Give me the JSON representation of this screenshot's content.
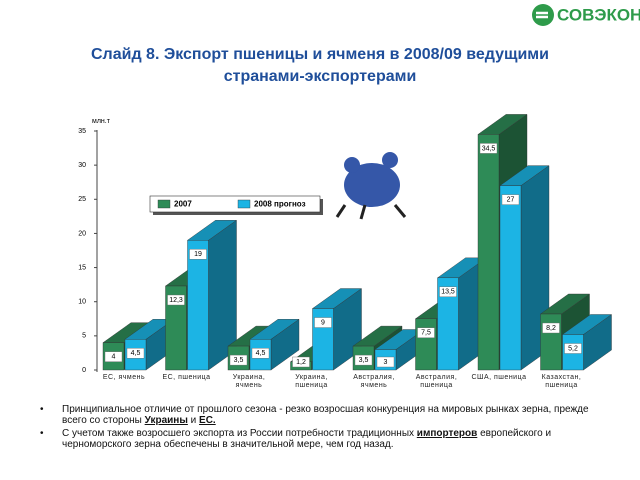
{
  "logo": "СОВЭКОН",
  "chart_data": {
    "type": "bar3d",
    "title": "Слайд 8. Экспорт пшеницы и ячменя в 2008/09 ведущими странами-экспортерами",
    "y_label": "млн.т",
    "categories": [
      "ЕС, ячмень",
      "ЕС, пшеница",
      "Украина, ячмень",
      "Украина, пшеница",
      "Австралия, ячмень",
      "Австралия, пшеница",
      "США, пшеница",
      "Казахстан, пшеница"
    ],
    "series": [
      {
        "name": "2007",
        "color": "#2e8b57",
        "values": [
          4,
          12.3,
          3.5,
          1.2,
          3.5,
          7.5,
          34.5,
          8.2
        ],
        "value_labels": [
          "4",
          "12,3",
          "3,5",
          "1,2",
          "3,5",
          "7,5",
          "34,5",
          "8,2"
        ]
      },
      {
        "name": "2008 прогноз",
        "color": "#1cb4e4",
        "values": [
          4.5,
          19,
          4.5,
          9,
          3,
          13.5,
          27,
          5.2
        ],
        "value_labels": [
          "4,5",
          "19",
          "4,5",
          "9",
          "3",
          "13,5",
          "27",
          "5,2"
        ]
      }
    ],
    "ylim": [
      0,
      35
    ],
    "yticks": [
      0,
      5,
      10,
      15,
      20,
      25,
      30,
      35
    ]
  },
  "bullets": [
    [
      "Принципиальное отличие от прошлого сезона - резко возросшая конкуренция на мировых рынках зерна, прежде всего со стороны ",
      "Украины",
      " и ",
      "ЕС."
    ],
    [
      "С учетом также возросшего экспорта из России потребности традиционных ",
      "импортеров",
      " европейского и черноморского зерна обеспечены в значительной мере, чем год назад."
    ]
  ]
}
